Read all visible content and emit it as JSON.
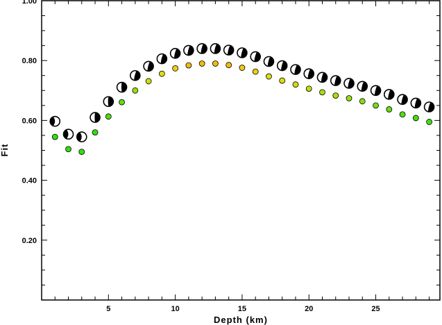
{
  "chart_data": {
    "type": "scatter",
    "title": "",
    "xlabel": "Depth (km)",
    "ylabel": "Fit",
    "xlim": [
      0,
      29.8
    ],
    "ylim": [
      0.0,
      1.0
    ],
    "x_ticks": [
      5,
      10,
      15,
      20,
      25
    ],
    "y_ticks": [
      0.2,
      0.4,
      0.6,
      0.8,
      1.0
    ],
    "y_tick_labels": [
      "0.20",
      "0.40",
      "0.60",
      "0.80",
      "1.00"
    ],
    "grid": false,
    "series": [
      {
        "marker": "focal-mechanism-beachball",
        "x": [
          1,
          2,
          3,
          4,
          5,
          6,
          7,
          8,
          9,
          10,
          11,
          12,
          13,
          14,
          15,
          16,
          17,
          18,
          19,
          20,
          21,
          22,
          23,
          24,
          25,
          26,
          27,
          28,
          29
        ],
        "y": [
          0.597,
          0.554,
          0.545,
          0.61,
          0.663,
          0.711,
          0.75,
          0.781,
          0.806,
          0.824,
          0.834,
          0.84,
          0.84,
          0.835,
          0.826,
          0.813,
          0.797,
          0.783,
          0.77,
          0.756,
          0.744,
          0.733,
          0.724,
          0.714,
          0.7,
          0.687,
          0.67,
          0.658,
          0.645
        ]
      },
      {
        "marker": "circle",
        "x": [
          1,
          2,
          3,
          4,
          5,
          6,
          7,
          8,
          9,
          10,
          11,
          12,
          13,
          14,
          15,
          16,
          17,
          18,
          19,
          20,
          21,
          22,
          23,
          24,
          25,
          26,
          27,
          28,
          29
        ],
        "y": [
          0.545,
          0.504,
          0.495,
          0.56,
          0.613,
          0.661,
          0.7,
          0.731,
          0.756,
          0.774,
          0.784,
          0.79,
          0.79,
          0.785,
          0.776,
          0.763,
          0.747,
          0.733,
          0.72,
          0.706,
          0.694,
          0.683,
          0.674,
          0.664,
          0.65,
          0.637,
          0.62,
          0.608,
          0.595
        ],
        "colors": [
          "#33dd11",
          "#33dd11",
          "#33dd11",
          "#33dd11",
          "#55dd11",
          "#66dd11",
          "#99dd11",
          "#ccdd11",
          "#dddd11",
          "#eecc11",
          "#eebb11",
          "#eebb11",
          "#eebb11",
          "#eebb11",
          "#eecc11",
          "#eecc11",
          "#dddd11",
          "#dddd11",
          "#cedd11",
          "#bbdd11",
          "#aadd11",
          "#aadd11",
          "#99dd11",
          "#88dd11",
          "#77dd11",
          "#66dd11",
          "#55dd11",
          "#44dd11",
          "#44dd11"
        ]
      }
    ]
  }
}
